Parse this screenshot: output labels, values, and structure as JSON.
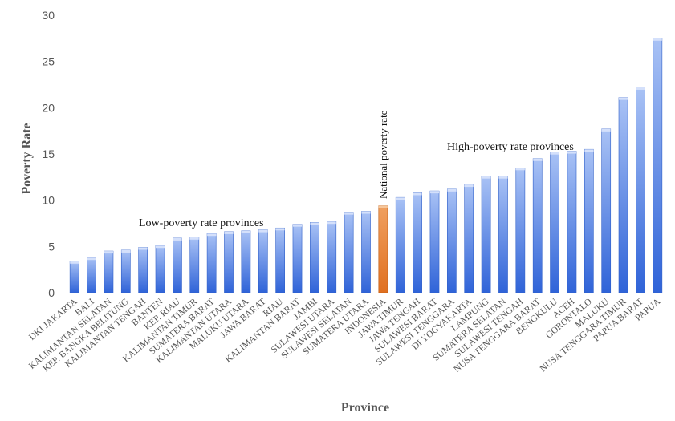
{
  "chart_data": {
    "type": "bar",
    "xlabel": "Province",
    "ylabel": "Poverty Rate",
    "ylim": [
      0,
      30
    ],
    "yticks": [
      0,
      5,
      10,
      15,
      20,
      25,
      30
    ],
    "grid": false,
    "categories": [
      "DKI JAKARTA",
      "BALI",
      "KALIMANTAN SELATAN",
      "KEP. BANGKA BELITUNG",
      "KALIMANTAN TENGAH",
      "BANTEN",
      "KEP. RIAU",
      "KALIMANTAN TIMUR",
      "SUMATERA BARAT",
      "KALIMANTAN UTARA",
      "MALUKU UTARA",
      "JAWA BARAT",
      "RIAU",
      "KALIMANTAN BARAT",
      "JAMBI",
      "SULAWESI UTARA",
      "SULAWESI SELATAN",
      "SUMATERA UTARA",
      "INDONESIA",
      "JAWA TIMUR",
      "JAWA TENGAH",
      "SULAWESI BARAT",
      "SULAWESI TENGGARA",
      "DI YOGYAKARTA",
      "LAMPUNG",
      "SUMATERA SELATAN",
      "SULAWESI TENGAH",
      "NUSA TENGGARA BARAT",
      "BENGKULU",
      "ACEH",
      "GORONTALO",
      "MALUKU",
      "NUSA TENGGARA TIMUR",
      "PAPUA BARAT",
      "PAPUA"
    ],
    "values": [
      3.4,
      3.8,
      4.5,
      4.6,
      4.9,
      5.1,
      5.9,
      6.0,
      6.4,
      6.6,
      6.7,
      6.8,
      7.0,
      7.4,
      7.6,
      7.7,
      8.7,
      8.8,
      9.4,
      10.3,
      10.8,
      11.0,
      11.2,
      11.7,
      12.6,
      12.6,
      13.5,
      14.5,
      15.2,
      15.3,
      15.5,
      17.7,
      21.1,
      22.2,
      27.5
    ],
    "highlight": {
      "category": "INDONESIA",
      "color": "#e87722"
    },
    "bar_color": "#4f7fe6",
    "annotations": {
      "low": "Low-poverty rate provinces",
      "national": "National poverty rate",
      "high": "High-poverty rate provinces"
    }
  }
}
